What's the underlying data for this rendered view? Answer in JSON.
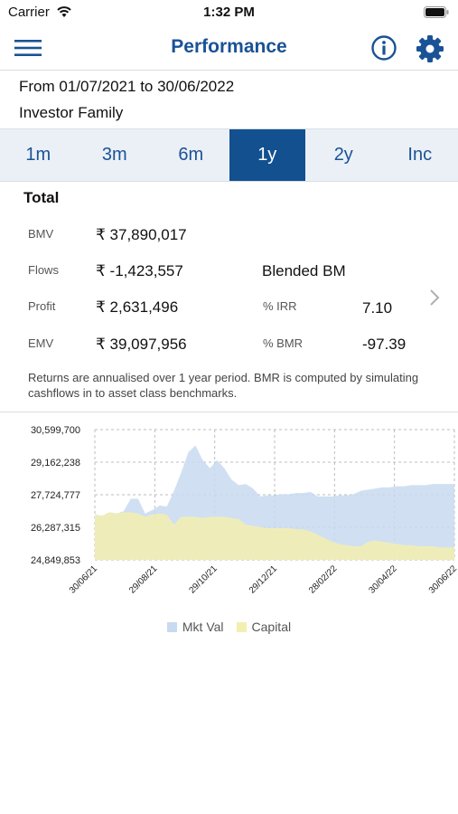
{
  "status": {
    "carrier": "Carrier",
    "time": "1:32 PM"
  },
  "nav": {
    "title": "Performance"
  },
  "filters": {
    "period": "From 01/07/2021 to 30/06/2022",
    "group": "Investor Family"
  },
  "tabs": [
    {
      "label": "1m",
      "active": false
    },
    {
      "label": "3m",
      "active": false
    },
    {
      "label": "6m",
      "active": false
    },
    {
      "label": "1y",
      "active": true
    },
    {
      "label": "2y",
      "active": false
    },
    {
      "label": "Inc",
      "active": false
    }
  ],
  "summary": {
    "heading": "Total",
    "bmv": {
      "label": "BMV",
      "value": "₹ 37,890,017"
    },
    "flows": {
      "label": "Flows",
      "value": "₹ -1,423,557"
    },
    "profit": {
      "label": "Profit",
      "value": "₹ 2,631,496"
    },
    "emv": {
      "label": "EMV",
      "value": "₹ 39,097,956"
    },
    "blended_label": "Blended BM",
    "irr": {
      "label": "% IRR",
      "value": "7.10"
    },
    "bmr": {
      "label": "% BMR",
      "value": "-97.39"
    },
    "note": "Returns are annualised over 1 year period. BMR is computed by simulating cashflows in to asset class benchmarks."
  },
  "colors": {
    "accent": "#1a5296",
    "active_tab": "#13508f",
    "mkt_val": "#c8daf0",
    "capital": "#f3efb0"
  },
  "chart_data": {
    "type": "area",
    "x_ticks": [
      "30/06/21",
      "29/08/21",
      "29/10/21",
      "29/12/21",
      "28/02/22",
      "30/04/22",
      "30/06/22"
    ],
    "y_ticks": [
      "30,599,700",
      "29,162,238",
      "27,724,777",
      "26,287,315",
      "24,849,853"
    ],
    "ylim": [
      24849853,
      30599700
    ],
    "grid": true,
    "legend_position": "bottom",
    "x": [
      0,
      0.02,
      0.04,
      0.06,
      0.08,
      0.1,
      0.12,
      0.14,
      0.16,
      0.18,
      0.2,
      0.22,
      0.24,
      0.26,
      0.28,
      0.3,
      0.32,
      0.34,
      0.36,
      0.38,
      0.4,
      0.42,
      0.44,
      0.46,
      0.48,
      0.5,
      0.52,
      0.54,
      0.56,
      0.58,
      0.6,
      0.62,
      0.64,
      0.66,
      0.68,
      0.7,
      0.72,
      0.74,
      0.76,
      0.78,
      0.8,
      0.82,
      0.84,
      0.86,
      0.88,
      0.9,
      0.92,
      0.94,
      0.96,
      0.98,
      1.0
    ],
    "series": [
      {
        "name": "Mkt Val",
        "values": [
          26850000,
          26800000,
          26950000,
          26900000,
          27000000,
          27550000,
          27550000,
          26900000,
          27050000,
          27250000,
          27200000,
          27900000,
          28700000,
          29600000,
          29900000,
          29250000,
          28900000,
          29250000,
          28900000,
          28400000,
          28150000,
          28200000,
          28000000,
          27650000,
          27700000,
          27700000,
          27750000,
          27750000,
          27800000,
          27800000,
          27850000,
          27650000,
          27650000,
          27650000,
          27700000,
          27700000,
          27750000,
          27900000,
          27950000,
          28000000,
          28050000,
          28050000,
          28100000,
          28100000,
          28150000,
          28150000,
          28150000,
          28200000,
          28200000,
          28200000,
          28200000
        ]
      },
      {
        "name": "Capital",
        "values": [
          26850000,
          26800000,
          26950000,
          26900000,
          26950000,
          26950000,
          26900000,
          26750000,
          26850000,
          26900000,
          26850000,
          26400000,
          26750000,
          26750000,
          26750000,
          26700000,
          26750000,
          26750000,
          26750000,
          26700000,
          26650000,
          26400000,
          26350000,
          26300000,
          26250000,
          26250000,
          26250000,
          26250000,
          26200000,
          26200000,
          26100000,
          25950000,
          25800000,
          25650000,
          25550000,
          25500000,
          25450000,
          25450000,
          25650000,
          25700000,
          25650000,
          25600000,
          25550000,
          25500000,
          25500000,
          25450000,
          25450000,
          25450000,
          25400000,
          25400000,
          25400000
        ]
      }
    ]
  }
}
